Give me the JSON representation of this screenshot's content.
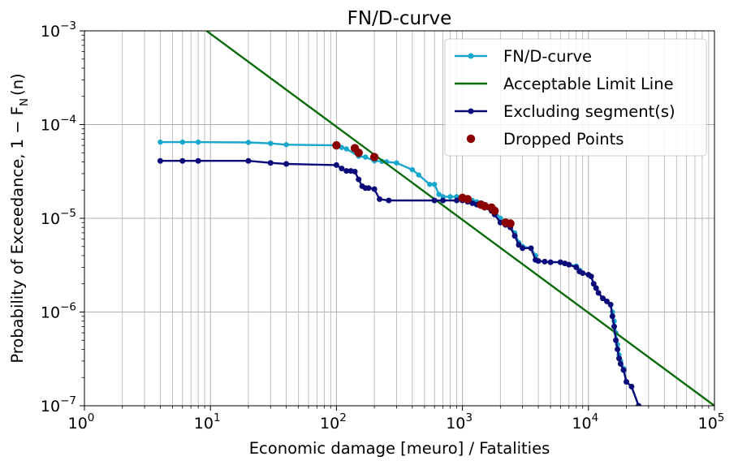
{
  "chart_data": {
    "type": "line",
    "title": "FN/D-curve",
    "xlabel": "Economic damage [meuro] / Fatalities",
    "ylabel": "Probability of Exceedance, 1 − F",
    "ylabel_sub": "N",
    "ylabel_tail": "(n)",
    "x_scale": "log",
    "y_scale": "log",
    "xlim": [
      1,
      100000
    ],
    "ylim": [
      1e-07,
      0.001
    ],
    "grid": true,
    "legend_position": "top-right",
    "x_ticks": [
      {
        "base": "10",
        "exp": "0",
        "value": 1
      },
      {
        "base": "10",
        "exp": "1",
        "value": 10
      },
      {
        "base": "10",
        "exp": "2",
        "value": 100
      },
      {
        "base": "10",
        "exp": "3",
        "value": 1000
      },
      {
        "base": "10",
        "exp": "4",
        "value": 10000
      },
      {
        "base": "10",
        "exp": "5",
        "value": 100000
      }
    ],
    "y_ticks": [
      {
        "base": "10",
        "exp": "−7",
        "value": 1e-07
      },
      {
        "base": "10",
        "exp": "−6",
        "value": 1e-06
      },
      {
        "base": "10",
        "exp": "−5",
        "value": 1e-05
      },
      {
        "base": "10",
        "exp": "−4",
        "value": 0.0001
      },
      {
        "base": "10",
        "exp": "−3",
        "value": 0.001
      }
    ],
    "series": [
      {
        "name": "FN/D-curve",
        "kind": "line-marker",
        "color": "#17a6cc",
        "points": [
          [
            4,
            6.5e-05
          ],
          [
            6,
            6.5e-05
          ],
          [
            8,
            6.5e-05
          ],
          [
            20,
            6.45e-05
          ],
          [
            30,
            6.3e-05
          ],
          [
            40,
            6.1e-05
          ],
          [
            100,
            6e-05
          ],
          [
            110,
            5.7e-05
          ],
          [
            120,
            5.5e-05
          ],
          [
            150,
            4.6e-05
          ],
          [
            170,
            4.5e-05
          ],
          [
            200,
            4.1e-05
          ],
          [
            230,
            4.05e-05
          ],
          [
            250,
            4e-05
          ],
          [
            300,
            3.9e-05
          ],
          [
            400,
            3.3e-05
          ],
          [
            450,
            2.9e-05
          ],
          [
            550,
            2.3e-05
          ],
          [
            600,
            2.3e-05
          ],
          [
            650,
            1.8e-05
          ],
          [
            700,
            1.7e-05
          ],
          [
            800,
            1.7e-05
          ],
          [
            900,
            1.7e-05
          ],
          [
            1000,
            1.65e-05
          ],
          [
            1100,
            1.6e-05
          ],
          [
            1200,
            1.55e-05
          ],
          [
            1300,
            1.5e-05
          ],
          [
            1400,
            1.4e-05
          ],
          [
            1500,
            1.35e-05
          ],
          [
            1700,
            1.3e-05
          ],
          [
            1800,
            1.2e-05
          ],
          [
            2000,
            1e-05
          ],
          [
            2200,
            9e-06
          ],
          [
            2400,
            8e-06
          ],
          [
            2600,
            7e-06
          ],
          [
            2800,
            5.5e-06
          ],
          [
            3000,
            5e-06
          ],
          [
            3500,
            4.8e-06
          ],
          [
            3800,
            4e-06
          ],
          [
            4000,
            3.5e-06
          ],
          [
            4500,
            3.45e-06
          ],
          [
            5000,
            3.4e-06
          ],
          [
            6000,
            3.4e-06
          ],
          [
            6500,
            3.3e-06
          ],
          [
            7000,
            3.2e-06
          ],
          [
            8000,
            3.1e-06
          ],
          [
            8500,
            2.8e-06
          ],
          [
            9000,
            2.6e-06
          ],
          [
            10000,
            2.5e-06
          ],
          [
            10500,
            2.4e-06
          ],
          [
            11000,
            2e-06
          ],
          [
            11500,
            1.8e-06
          ],
          [
            12000,
            1.6e-06
          ],
          [
            13000,
            1.4e-06
          ],
          [
            14000,
            1.3e-06
          ],
          [
            15000,
            1.2e-06
          ],
          [
            15500,
            1e-06
          ],
          [
            16000,
            8e-07
          ],
          [
            16500,
            6e-07
          ],
          [
            17000,
            4.5e-07
          ],
          [
            17500,
            3.5e-07
          ],
          [
            18000,
            3e-07
          ],
          [
            19000,
            2.5e-07
          ],
          [
            20000,
            1.8e-07
          ],
          [
            22000,
            1.6e-07
          ],
          [
            25000,
            1e-07
          ]
        ]
      },
      {
        "name": "Acceptable Limit Line",
        "kind": "line",
        "color": "#0a6b0a",
        "points": [
          [
            9.3,
            0.001
          ],
          [
            100000,
            1e-07
          ]
        ]
      },
      {
        "name": "Excluding segment(s)",
        "kind": "line-marker",
        "color": "#0b0b7a",
        "points": [
          [
            4,
            4.1e-05
          ],
          [
            6,
            4.1e-05
          ],
          [
            8,
            4.1e-05
          ],
          [
            20,
            4.1e-05
          ],
          [
            30,
            3.9e-05
          ],
          [
            40,
            3.8e-05
          ],
          [
            100,
            3.7e-05
          ],
          [
            110,
            3.4e-05
          ],
          [
            120,
            3.2e-05
          ],
          [
            130,
            3.2e-05
          ],
          [
            140,
            3.15e-05
          ],
          [
            150,
            2.6e-05
          ],
          [
            160,
            2.2e-05
          ],
          [
            170,
            2.1e-05
          ],
          [
            180,
            2.1e-05
          ],
          [
            200,
            2.05e-05
          ],
          [
            220,
            1.6e-05
          ],
          [
            260,
            1.55e-05
          ],
          [
            600,
            1.55e-05
          ],
          [
            700,
            1.55e-05
          ],
          [
            900,
            1.55e-05
          ],
          [
            1000,
            1.55e-05
          ],
          [
            1100,
            1.5e-05
          ],
          [
            1200,
            1.45e-05
          ],
          [
            1300,
            1.4e-05
          ],
          [
            1500,
            1.3e-05
          ],
          [
            1700,
            1.2e-05
          ],
          [
            1800,
            1.1e-05
          ],
          [
            2000,
            9e-06
          ],
          [
            2200,
            8.5e-06
          ],
          [
            2400,
            8e-06
          ],
          [
            2600,
            6.5e-06
          ],
          [
            2800,
            5.2e-06
          ],
          [
            3000,
            4.8e-06
          ],
          [
            3500,
            4.8e-06
          ],
          [
            3800,
            3.6e-06
          ],
          [
            4000,
            3.5e-06
          ],
          [
            4500,
            3.45e-06
          ],
          [
            5000,
            3.4e-06
          ],
          [
            6000,
            3.4e-06
          ],
          [
            6500,
            3.3e-06
          ],
          [
            7000,
            3.2e-06
          ],
          [
            8000,
            3e-06
          ],
          [
            8500,
            2.7e-06
          ],
          [
            9000,
            2.6e-06
          ],
          [
            10000,
            2.5e-06
          ],
          [
            10500,
            2.4e-06
          ],
          [
            11000,
            2e-06
          ],
          [
            11500,
            1.8e-06
          ],
          [
            12000,
            1.6e-06
          ],
          [
            13000,
            1.4e-06
          ],
          [
            14000,
            1.3e-06
          ],
          [
            15000,
            1.2e-06
          ],
          [
            15500,
            9e-07
          ],
          [
            16000,
            7e-07
          ],
          [
            16500,
            5e-07
          ],
          [
            17000,
            4e-07
          ],
          [
            17500,
            3.2e-07
          ],
          [
            18000,
            2.8e-07
          ],
          [
            19000,
            2.4e-07
          ],
          [
            20000,
            1.8e-07
          ],
          [
            22000,
            1.6e-07
          ],
          [
            25000,
            1e-07
          ]
        ]
      },
      {
        "name": "Dropped Points",
        "kind": "scatter",
        "color": "#8b0000",
        "points": [
          [
            100,
            6e-05
          ],
          [
            140,
            5.6e-05
          ],
          [
            150,
            5e-05
          ],
          [
            200,
            4.5e-05
          ],
          [
            1000,
            1.65e-05
          ],
          [
            1100,
            1.6e-05
          ],
          [
            1400,
            1.4e-05
          ],
          [
            1500,
            1.35e-05
          ],
          [
            1700,
            1.3e-05
          ],
          [
            1800,
            1.2e-05
          ],
          [
            2200,
            9e-06
          ],
          [
            2400,
            8.8e-06
          ]
        ]
      }
    ]
  }
}
